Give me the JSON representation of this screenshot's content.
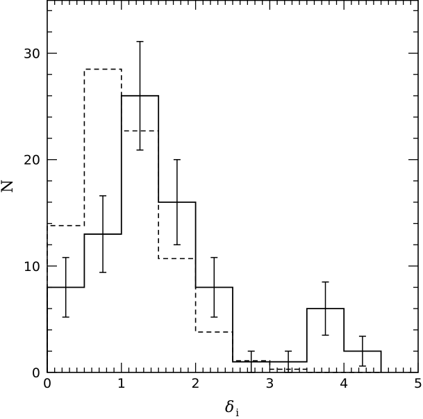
{
  "chart_data": {
    "type": "bar",
    "xlabel": "δ",
    "xlabel_subscript": "i",
    "ylabel": "N",
    "xlim": [
      0,
      5
    ],
    "ylim": [
      0,
      35
    ],
    "x_ticks": [
      0,
      1,
      2,
      3,
      4,
      5
    ],
    "y_ticks": [
      0,
      10,
      20,
      30
    ],
    "x_tick_labels": [
      "0",
      "1",
      "2",
      "3",
      "4",
      "5"
    ],
    "y_tick_labels": [
      "0",
      "10",
      "20",
      "30"
    ],
    "bin_edges": [
      0,
      0.5,
      1,
      1.5,
      2,
      2.5,
      3,
      3.5,
      4,
      4.5
    ],
    "series": [
      {
        "style": "solid",
        "values": [
          8,
          13,
          26,
          16,
          8,
          1,
          1,
          6,
          2
        ],
        "errors_low": [
          2.8,
          3.6,
          5.1,
          4,
          2.8,
          1,
          1,
          2.5,
          1.4
        ],
        "errors_high": [
          2.8,
          3.6,
          5.1,
          4,
          2.8,
          1,
          1,
          2.5,
          1.4
        ]
      },
      {
        "style": "dashed",
        "values": [
          13.8,
          28.5,
          22.7,
          10.7,
          3.8,
          1.1,
          0.3,
          0,
          0
        ]
      }
    ]
  }
}
